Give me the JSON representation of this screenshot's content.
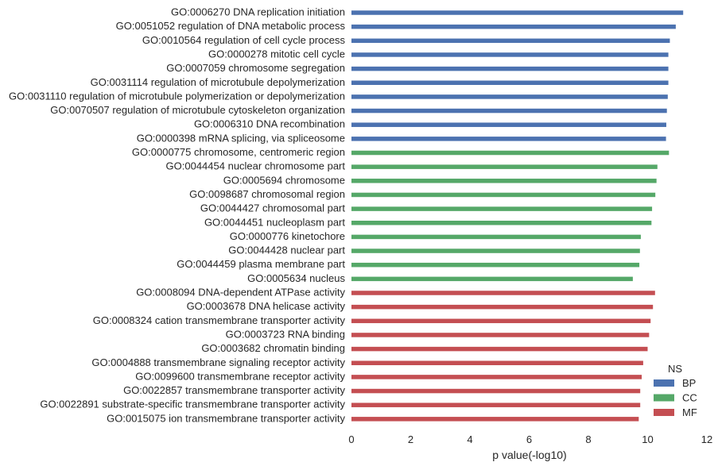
{
  "chart_data": {
    "type": "bar",
    "orientation": "horizontal",
    "xlabel": "p value(-log10)",
    "ylabel": "",
    "xlim": [
      0,
      12
    ],
    "xticks": [
      "0",
      "2",
      "4",
      "6",
      "8",
      "10",
      "12"
    ],
    "grid": false,
    "legend": {
      "title": "NS",
      "placement": "bottom-right",
      "entries": [
        {
          "name": "BP",
          "color": "#4c72b0"
        },
        {
          "name": "CC",
          "color": "#55a868"
        },
        {
          "name": "MF",
          "color": "#c44e52"
        }
      ]
    },
    "bars": [
      {
        "label": "GO:0006270 DNA replication initiation",
        "ns": "BP",
        "value": 11.2
      },
      {
        "label": "GO:0051052 regulation of DNA metabolic process",
        "ns": "BP",
        "value": 10.95
      },
      {
        "label": "GO:0010564 regulation of cell cycle process",
        "ns": "BP",
        "value": 10.75
      },
      {
        "label": "GO:0000278 mitotic cell cycle",
        "ns": "BP",
        "value": 10.7
      },
      {
        "label": "GO:0007059 chromosome segregation",
        "ns": "BP",
        "value": 10.7
      },
      {
        "label": "GO:0031114 regulation of microtubule depolymerization",
        "ns": "BP",
        "value": 10.7
      },
      {
        "label": "GO:0031110 regulation of microtubule polymerization or depolymerization",
        "ns": "BP",
        "value": 10.68
      },
      {
        "label": "GO:0070507 regulation of microtubule cytoskeleton organization",
        "ns": "BP",
        "value": 10.65
      },
      {
        "label": "GO:0006310 DNA recombination",
        "ns": "BP",
        "value": 10.63
      },
      {
        "label": "GO:0000398 mRNA splicing, via spliceosome",
        "ns": "BP",
        "value": 10.62
      },
      {
        "label": "GO:0000775 chromosome, centromeric region",
        "ns": "CC",
        "value": 10.72
      },
      {
        "label": "GO:0044454 nuclear chromosome part",
        "ns": "CC",
        "value": 10.33
      },
      {
        "label": "GO:0005694 chromosome",
        "ns": "CC",
        "value": 10.3
      },
      {
        "label": "GO:0098687 chromosomal region",
        "ns": "CC",
        "value": 10.26
      },
      {
        "label": "GO:0044427 chromosomal part",
        "ns": "CC",
        "value": 10.15
      },
      {
        "label": "GO:0044451 nucleoplasm part",
        "ns": "CC",
        "value": 10.13
      },
      {
        "label": "GO:0000776 kinetochore",
        "ns": "CC",
        "value": 9.77
      },
      {
        "label": "GO:0044428 nuclear part",
        "ns": "CC",
        "value": 9.74
      },
      {
        "label": "GO:0044459 plasma membrane part",
        "ns": "CC",
        "value": 9.72
      },
      {
        "label": "GO:0005634 nucleus",
        "ns": "CC",
        "value": 9.5
      },
      {
        "label": "GO:0008094 DNA-dependent ATPase activity",
        "ns": "MF",
        "value": 10.25
      },
      {
        "label": "GO:0003678 DNA helicase activity",
        "ns": "MF",
        "value": 10.18
      },
      {
        "label": "GO:0008324 cation transmembrane transporter activity",
        "ns": "MF",
        "value": 10.1
      },
      {
        "label": "GO:0003723 RNA binding",
        "ns": "MF",
        "value": 10.05
      },
      {
        "label": "GO:0003682 chromatin binding",
        "ns": "MF",
        "value": 10.0
      },
      {
        "label": "GO:0004888 transmembrane signaling receptor activity",
        "ns": "MF",
        "value": 9.85
      },
      {
        "label": "GO:0099600 transmembrane receptor activity",
        "ns": "MF",
        "value": 9.8
      },
      {
        "label": "GO:0022857 transmembrane transporter activity",
        "ns": "MF",
        "value": 9.75
      },
      {
        "label": "GO:0022891 substrate-specific transmembrane transporter activity",
        "ns": "MF",
        "value": 9.75
      },
      {
        "label": "GO:0015075 ion transmembrane transporter activity",
        "ns": "MF",
        "value": 9.7
      }
    ]
  }
}
